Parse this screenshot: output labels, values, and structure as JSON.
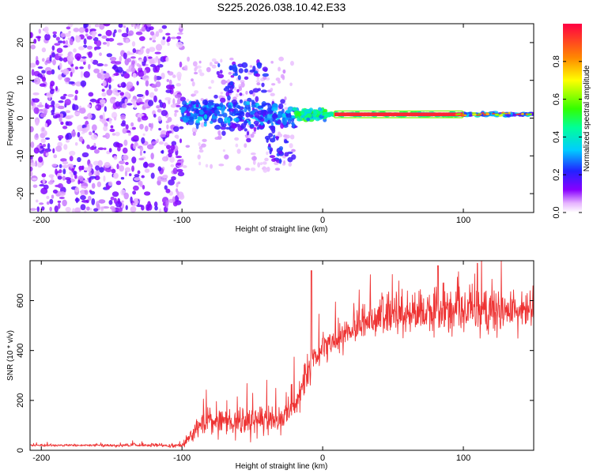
{
  "title": "S225.2026.038.10.42.E33",
  "chart_data": [
    {
      "type": "heatmap",
      "name": "spectrogram",
      "xlabel": "Height of straight line (km)",
      "ylabel": "Frequency (Hz)",
      "xlim": [
        -208,
        150
      ],
      "ylim": [
        -25,
        25
      ],
      "xticks": [
        -200,
        -100,
        0,
        100
      ],
      "xtick_labels": [
        "-200",
        "-100",
        "0",
        "100"
      ],
      "yticks": [
        -20,
        -10,
        0,
        10,
        20
      ],
      "ytick_labels": [
        "-20",
        "-10",
        "0",
        "10",
        "20"
      ],
      "colorbar": {
        "label": "Normalized spectral amplitude",
        "range": [
          0,
          1
        ],
        "ticks": [
          0.0,
          0.2,
          0.4,
          0.6,
          0.8
        ],
        "tick_labels": [
          "0.0",
          "0.2",
          "0.4",
          "0.6",
          "0.8"
        ]
      },
      "regions": [
        {
          "x_range": [
            -208,
            -100
          ],
          "freq_range": [
            -25,
            25
          ],
          "amplitude": "low-to-moderate scattered noise"
        },
        {
          "x_range": [
            -100,
            -20
          ],
          "freq_range": [
            -12,
            16
          ],
          "amplitude": "moderate clusters"
        },
        {
          "x_range": [
            -20,
            0
          ],
          "freq_range": [
            -2,
            4
          ],
          "amplitude": "moderate-high"
        },
        {
          "x_range": [
            0,
            150
          ],
          "freq_range": [
            0,
            2
          ],
          "amplitude": "high, narrow band near 1 Hz"
        }
      ]
    },
    {
      "type": "line",
      "name": "snr",
      "xlabel": "Height of straight line (km)",
      "ylabel": "SNR (10 * v/v)",
      "xlim": [
        -208,
        150
      ],
      "ylim": [
        0,
        760
      ],
      "xticks": [
        -200,
        -100,
        0,
        100
      ],
      "xtick_labels": [
        "-200",
        "-100",
        "0",
        "100"
      ],
      "yticks": [
        0,
        200,
        400,
        600
      ],
      "ytick_labels": [
        "0",
        "200",
        "400",
        "600"
      ],
      "color": "#ee3333",
      "trend_x": [
        -208,
        -100,
        -93,
        -85,
        -75,
        -65,
        -55,
        -45,
        -35,
        -25,
        -20,
        -15,
        -10,
        -5,
        0,
        10,
        20,
        30,
        40,
        50,
        60,
        80,
        100,
        120,
        150
      ],
      "trend_y": [
        20,
        20,
        60,
        110,
        120,
        115,
        110,
        115,
        120,
        150,
        200,
        250,
        310,
        360,
        400,
        440,
        480,
        520,
        540,
        545,
        550,
        555,
        560,
        560,
        555
      ],
      "noise_amp": [
        5,
        8,
        40,
        55,
        60,
        60,
        60,
        60,
        65,
        70,
        75,
        80,
        85,
        85,
        80,
        75,
        70,
        75,
        85,
        90,
        90,
        95,
        100,
        100,
        100
      ],
      "spikes": [
        {
          "x": -8,
          "y": 720
        },
        {
          "x": 82,
          "y": 740
        },
        {
          "x": 110,
          "y": 750
        }
      ]
    }
  ]
}
